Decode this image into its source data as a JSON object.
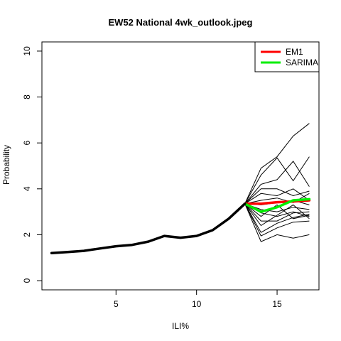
{
  "chart_data": {
    "type": "line",
    "title": "EW52 National 4wk_outlook.jpeg",
    "xlabel": "ILI%",
    "ylabel": "Probability",
    "xlim": [
      0.4,
      17.6
    ],
    "ylim": [
      -0.4,
      10.4
    ],
    "xticks": [
      5,
      10,
      15
    ],
    "yticks": [
      0,
      2,
      4,
      6,
      8,
      10
    ],
    "legend_position": "top-right",
    "history": {
      "x": [
        1,
        2,
        3,
        4,
        5,
        6,
        7,
        8,
        9,
        10,
        11,
        12,
        13
      ],
      "y": [
        1.2,
        1.25,
        1.3,
        1.4,
        1.5,
        1.56,
        1.7,
        1.95,
        1.87,
        1.95,
        2.2,
        2.7,
        3.35
      ]
    },
    "ensemble_x": [
      13,
      14,
      15,
      16,
      17
    ],
    "ensemble": [
      [
        3.35,
        4.9,
        5.4,
        6.3,
        6.85
      ],
      [
        3.35,
        4.6,
        5.35,
        4.35,
        5.4
      ],
      [
        3.35,
        4.2,
        4.4,
        5.2,
        4.1
      ],
      [
        3.35,
        4.0,
        4.0,
        3.7,
        3.9
      ],
      [
        3.35,
        3.8,
        3.7,
        4.0,
        3.5
      ],
      [
        3.35,
        3.5,
        3.6,
        3.4,
        3.8
      ],
      [
        3.35,
        3.3,
        3.4,
        3.5,
        3.3
      ],
      [
        3.35,
        3.1,
        3.0,
        3.2,
        3.1
      ],
      [
        3.35,
        2.95,
        2.8,
        3.0,
        2.8
      ],
      [
        3.35,
        2.8,
        3.3,
        2.7,
        2.85
      ],
      [
        3.35,
        2.6,
        2.6,
        2.95,
        3.0
      ],
      [
        3.35,
        2.4,
        2.85,
        3.3,
        2.7
      ],
      [
        3.35,
        2.1,
        2.5,
        2.75,
        2.9
      ],
      [
        3.35,
        1.95,
        2.3,
        2.55,
        2.6
      ],
      [
        3.35,
        1.7,
        2.0,
        1.85,
        2.0
      ]
    ],
    "series": [
      {
        "name": "EM1",
        "color": "#ff0000",
        "x": [
          13,
          14,
          15,
          16,
          17
        ],
        "y": [
          3.35,
          3.35,
          3.42,
          3.45,
          3.5
        ]
      },
      {
        "name": "SARIMA",
        "color": "#00ee00",
        "x": [
          13,
          14,
          15,
          16,
          17
        ],
        "y": [
          3.35,
          3.0,
          3.2,
          3.5,
          3.55
        ]
      }
    ]
  }
}
